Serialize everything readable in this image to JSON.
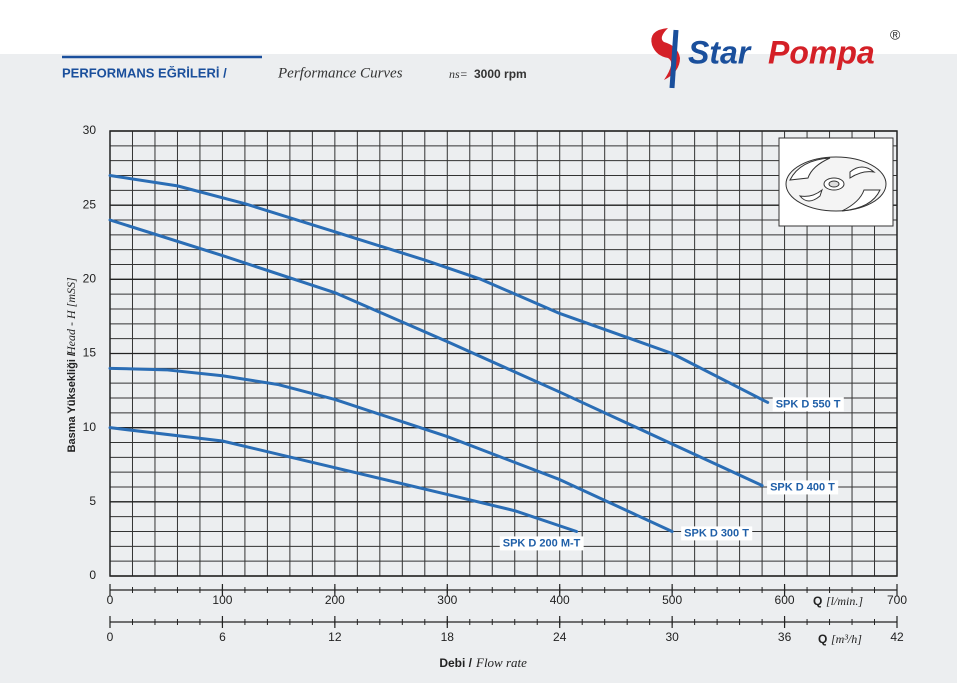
{
  "header": {
    "title_bold": "PERFORMANS EĞRİLERİ /",
    "title_italic": "Performance Curves",
    "speed_label": "ns=",
    "speed_value": "3000 rpm"
  },
  "logo": {
    "word1": "Star",
    "word2": "Pompa",
    "mark": "®"
  },
  "chart_data": {
    "type": "line",
    "x_label_bold": "Debi /",
    "x_label_italic": "Flow rate",
    "y_label_bold": "Basma Yüksekliği /",
    "y_label_italic": "Head - H [mSS]",
    "x_unit_bold": "Q",
    "x_unit_italic": "[l/min.]",
    "x2_unit_bold": "Q",
    "x2_unit_italic": "[m³/h]",
    "xlim": [
      0,
      700
    ],
    "xticks": [
      0,
      100,
      200,
      300,
      400,
      500,
      600,
      700
    ],
    "x2lim": [
      0,
      42
    ],
    "x2ticks": [
      0,
      6,
      12,
      18,
      24,
      30,
      36,
      42
    ],
    "ylim": [
      0,
      30
    ],
    "yticks": [
      0,
      5,
      10,
      15,
      20,
      25,
      30
    ],
    "grid": true,
    "x_minor_step": 20,
    "x2_minor_step": 1.2,
    "y_minor_step": 1,
    "series": [
      {
        "name": "SPK D 550 T",
        "color": "#2a6db5",
        "x": [
          0,
          60,
          120,
          200,
          280,
          330,
          400,
          500,
          585
        ],
        "values": [
          27,
          26.3,
          25.1,
          23.2,
          21.3,
          20,
          17.7,
          15,
          11.7
        ]
      },
      {
        "name": "SPK D 400 T",
        "color": "#2a6db5",
        "x": [
          0,
          100,
          200,
          300,
          400,
          500,
          580
        ],
        "values": [
          24,
          21.6,
          19.1,
          15.8,
          12.4,
          8.9,
          6.1
        ]
      },
      {
        "name": "SPK D 300 T",
        "color": "#2a6db5",
        "x": [
          0,
          50,
          100,
          150,
          200,
          300,
          400,
          500
        ],
        "values": [
          14,
          13.9,
          13.5,
          12.9,
          11.9,
          9.4,
          6.5,
          3
        ]
      },
      {
        "name": "SPK D 200 M-T",
        "color": "#2a6db5",
        "x": [
          0,
          100,
          200,
          300,
          360,
          415
        ],
        "values": [
          10,
          9.1,
          7.3,
          5.5,
          4.4,
          3
        ]
      }
    ]
  }
}
